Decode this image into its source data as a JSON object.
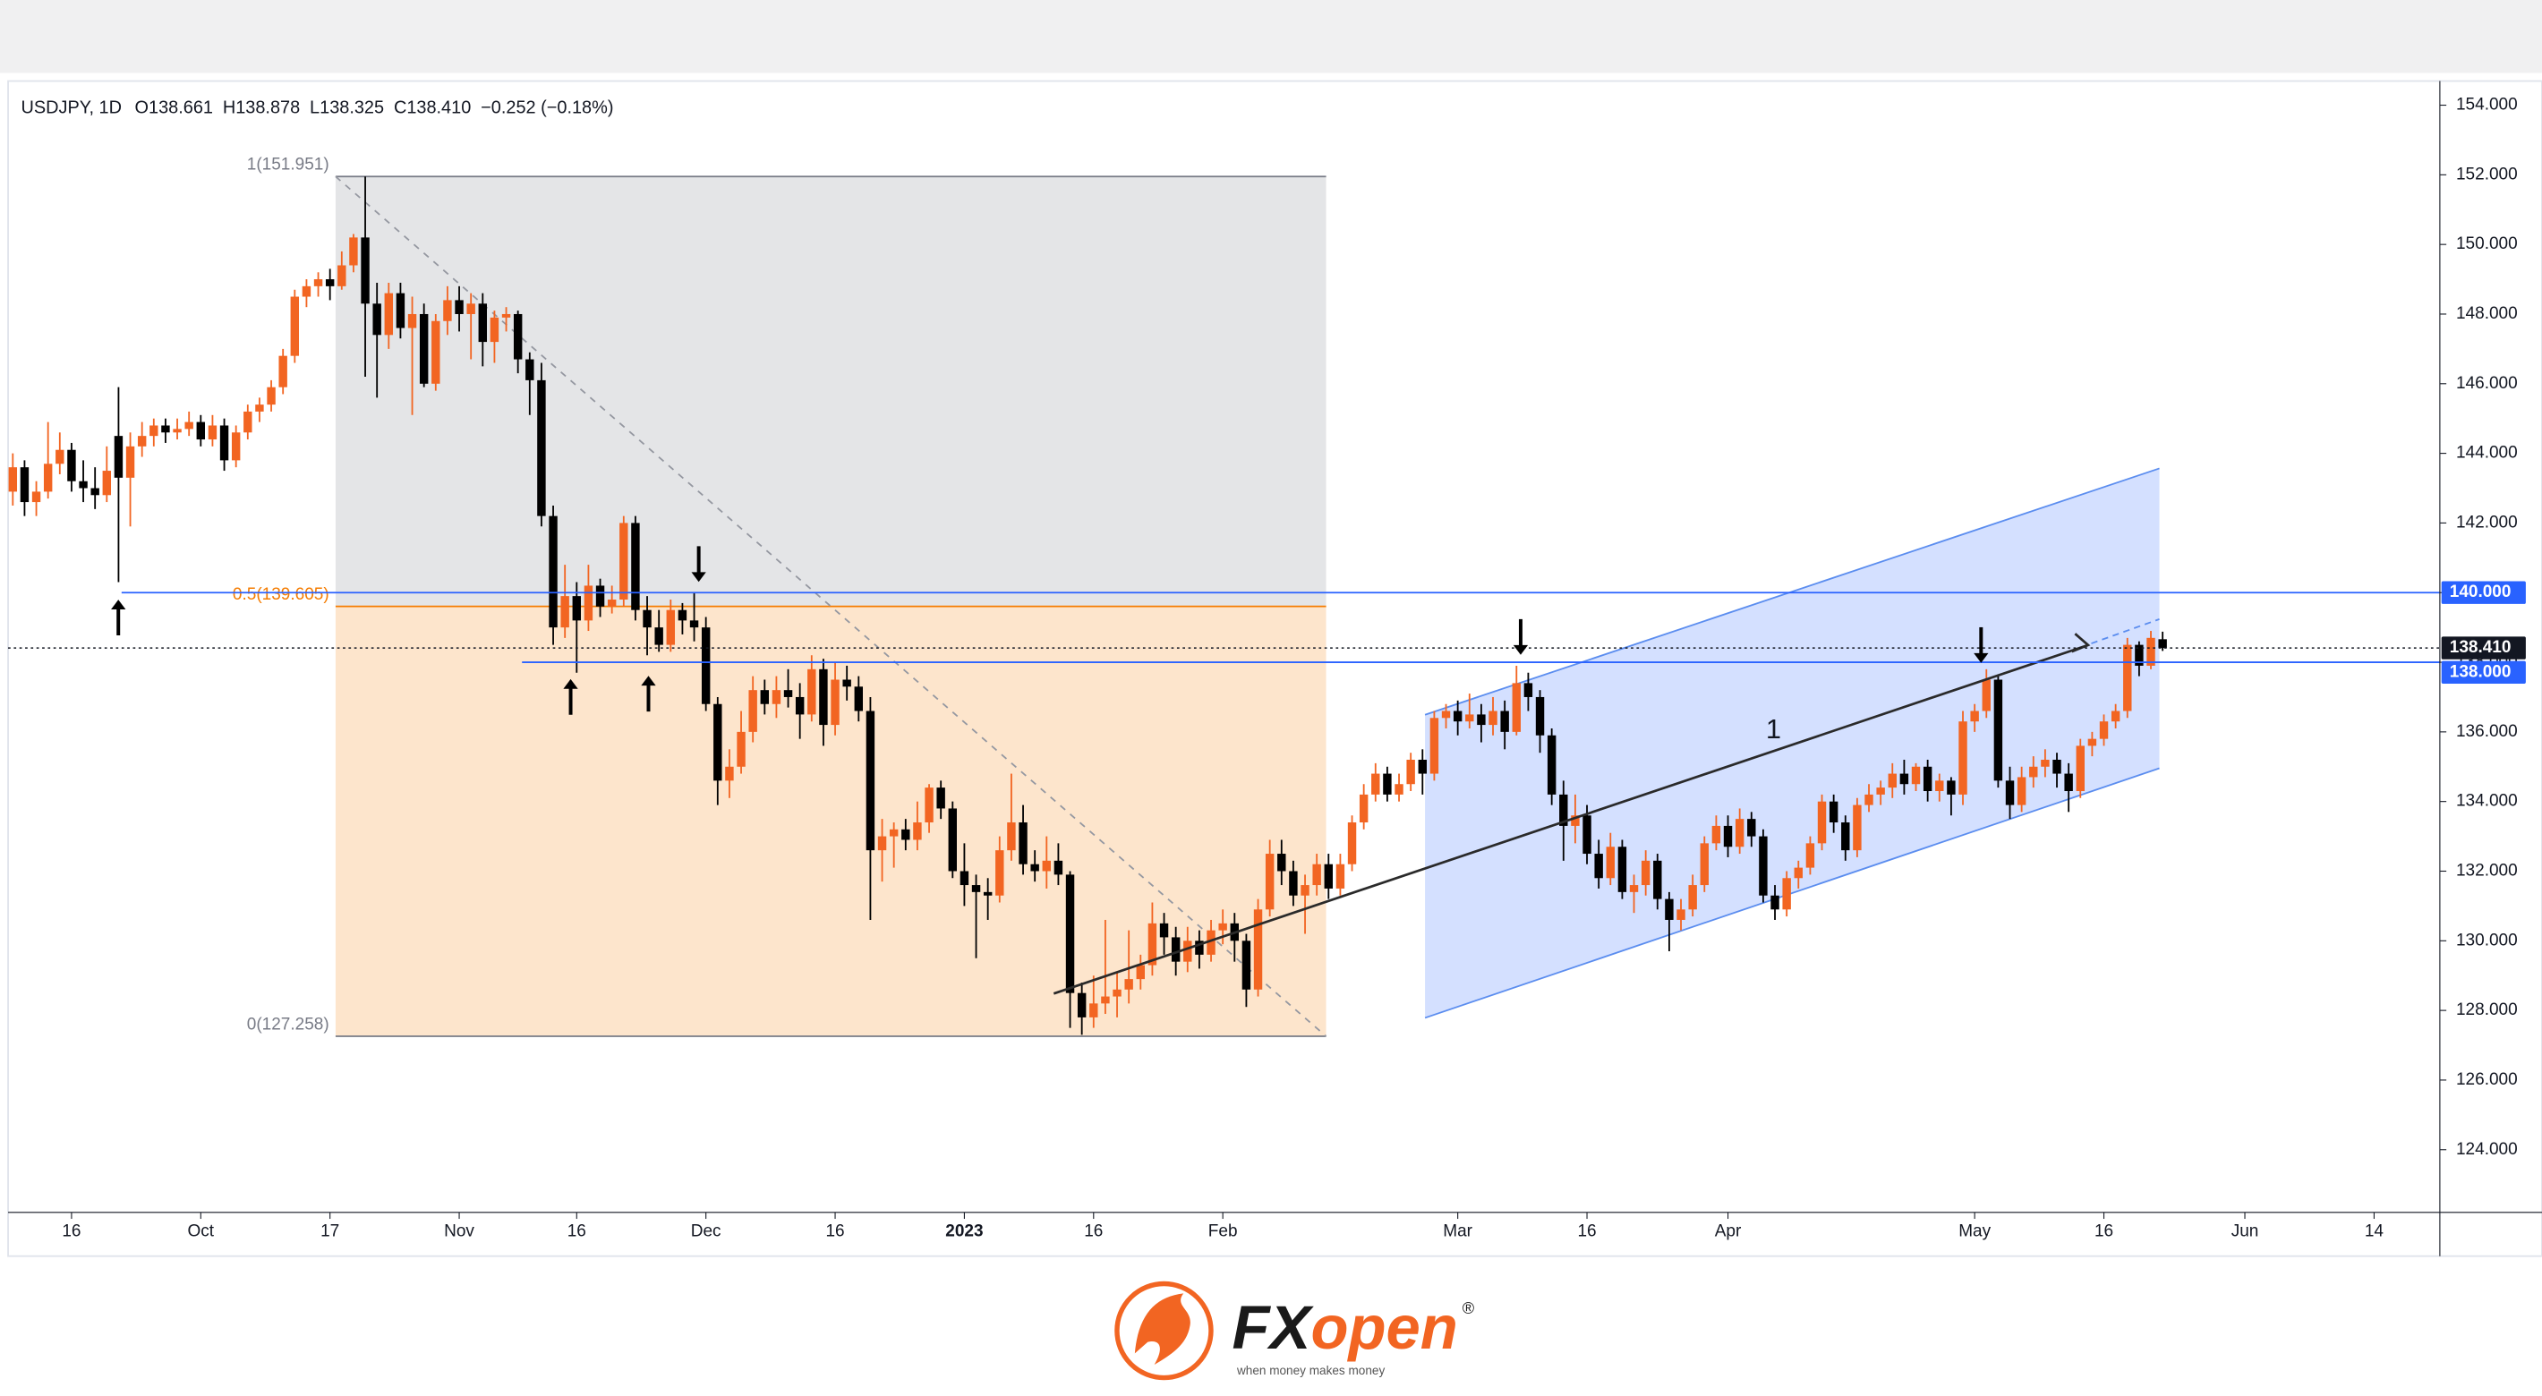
{
  "chart_data": {
    "type": "candlestick",
    "legend": {
      "symbol": "USDJPY, 1D",
      "open": "O138.661",
      "high": "H138.878",
      "low": "L138.325",
      "close": "C138.410",
      "change": "−0.252 (−0.18%)"
    },
    "up_color": "#f26522",
    "down_color": "#000000",
    "ylim": [
      122.2,
      154.6
    ],
    "yticks": [
      {
        "value": 124,
        "label": "124.000"
      },
      {
        "value": 126,
        "label": "126.000"
      },
      {
        "value": 128,
        "label": "128.000"
      },
      {
        "value": 130,
        "label": "130.000"
      },
      {
        "value": 132,
        "label": "132.000"
      },
      {
        "value": 134,
        "label": "134.000"
      },
      {
        "value": 136,
        "label": "136.000"
      },
      {
        "value": 138,
        "label": "138.000"
      },
      {
        "value": 140,
        "label": "140.000"
      },
      {
        "value": 142,
        "label": "142.000"
      },
      {
        "value": 144,
        "label": "144.000"
      },
      {
        "value": 146,
        "label": "146.000"
      },
      {
        "value": 148,
        "label": "148.000"
      },
      {
        "value": 150,
        "label": "150.000"
      },
      {
        "value": 152,
        "label": "152.000"
      },
      {
        "value": 154,
        "label": "154.000"
      }
    ],
    "categories": [
      null,
      null,
      null,
      null,
      null,
      "16",
      null,
      null,
      null,
      null,
      null,
      null,
      null,
      null,
      null,
      null,
      "Oct",
      null,
      null,
      null,
      null,
      null,
      null,
      null,
      null,
      null,
      null,
      "17",
      null,
      null,
      null,
      null,
      null,
      null,
      null,
      null,
      null,
      null,
      "Nov",
      null,
      null,
      null,
      null,
      null,
      null,
      null,
      null,
      null,
      "16",
      null,
      null,
      null,
      null,
      null,
      null,
      null,
      null,
      null,
      null,
      "Dec",
      null,
      null,
      null,
      null,
      null,
      null,
      null,
      null,
      null,
      null,
      "16",
      null,
      null,
      null,
      null,
      null,
      null,
      null,
      null,
      null,
      null,
      "2023",
      null,
      null,
      null,
      null,
      null,
      null,
      null,
      null,
      null,
      null,
      "16",
      null,
      null,
      null,
      null,
      null,
      null,
      null,
      null,
      null,
      null,
      "Feb",
      null,
      null,
      null,
      null,
      null,
      null,
      null,
      null,
      null,
      null,
      null,
      null,
      null,
      null,
      null,
      null,
      null,
      null,
      null,
      "Mar",
      null,
      null,
      null,
      null,
      null,
      null,
      null,
      null,
      null,
      null,
      "16",
      null,
      null,
      null,
      null,
      null,
      null,
      null,
      null,
      null,
      null,
      null,
      "Apr",
      null,
      null,
      null,
      null,
      null,
      null,
      null,
      null,
      null,
      null,
      null,
      null,
      null,
      null,
      null,
      null,
      null,
      null,
      null,
      null,
      "May",
      null,
      null,
      null,
      null,
      null,
      null,
      null,
      null,
      null,
      null,
      "16",
      null,
      null,
      null,
      null,
      null,
      null,
      null,
      null,
      null,
      null,
      null,
      "Jun",
      null,
      null,
      null,
      null,
      null,
      null,
      null,
      null,
      null,
      null,
      "14",
      null,
      null,
      null,
      null,
      null
    ],
    "ohlc": [
      [
        142.9,
        144.0,
        142.5,
        143.6
      ],
      [
        143.6,
        143.8,
        142.2,
        142.6
      ],
      [
        142.6,
        143.2,
        142.2,
        142.9
      ],
      [
        142.9,
        144.9,
        142.7,
        143.7
      ],
      [
        143.7,
        144.6,
        143.4,
        144.1
      ],
      [
        144.1,
        144.3,
        142.9,
        143.2
      ],
      [
        143.2,
        143.8,
        142.6,
        143.0
      ],
      [
        143.0,
        143.6,
        142.4,
        142.8
      ],
      [
        142.8,
        144.2,
        142.6,
        143.5
      ],
      [
        144.5,
        145.9,
        140.3,
        143.3
      ],
      [
        143.3,
        144.6,
        141.9,
        144.2
      ],
      [
        144.2,
        144.9,
        143.9,
        144.5
      ],
      [
        144.5,
        145.0,
        144.2,
        144.8
      ],
      [
        144.8,
        145.0,
        144.3,
        144.6
      ],
      [
        144.6,
        145.0,
        144.4,
        144.7
      ],
      [
        144.7,
        145.2,
        144.5,
        144.9
      ],
      [
        144.9,
        145.1,
        144.2,
        144.4
      ],
      [
        144.4,
        145.1,
        144.2,
        144.8
      ],
      [
        144.8,
        145.0,
        143.5,
        143.8
      ],
      [
        143.8,
        144.8,
        143.6,
        144.6
      ],
      [
        144.6,
        145.4,
        144.4,
        145.2
      ],
      [
        145.2,
        145.6,
        144.9,
        145.4
      ],
      [
        145.4,
        146.1,
        145.2,
        145.9
      ],
      [
        145.9,
        147.0,
        145.7,
        146.8
      ],
      [
        146.8,
        148.7,
        146.6,
        148.5
      ],
      [
        148.5,
        149.0,
        148.2,
        148.8
      ],
      [
        148.8,
        149.2,
        148.5,
        149.0
      ],
      [
        149.0,
        149.3,
        148.4,
        148.8
      ],
      [
        148.8,
        149.8,
        148.7,
        149.4
      ],
      [
        149.4,
        150.3,
        149.2,
        150.2
      ],
      [
        150.2,
        151.951,
        146.2,
        148.3
      ],
      [
        148.3,
        148.9,
        145.6,
        147.4
      ],
      [
        147.4,
        148.9,
        147.0,
        148.6
      ],
      [
        148.6,
        148.9,
        147.3,
        147.6
      ],
      [
        147.6,
        148.5,
        145.1,
        148.0
      ],
      [
        148.0,
        148.3,
        145.9,
        146.0
      ],
      [
        146.0,
        148.0,
        145.8,
        147.8
      ],
      [
        147.8,
        148.8,
        147.4,
        148.4
      ],
      [
        148.4,
        148.8,
        147.5,
        148.0
      ],
      [
        148.0,
        148.6,
        146.7,
        148.3
      ],
      [
        148.3,
        148.6,
        146.5,
        147.2
      ],
      [
        147.2,
        148.1,
        146.6,
        147.9
      ],
      [
        147.9,
        148.2,
        147.5,
        148.0
      ],
      [
        148.0,
        148.1,
        146.3,
        146.7
      ],
      [
        146.7,
        146.9,
        145.1,
        146.1
      ],
      [
        146.1,
        146.6,
        141.9,
        142.2
      ],
      [
        142.2,
        142.5,
        138.5,
        139.0
      ],
      [
        139.0,
        140.8,
        138.7,
        139.9
      ],
      [
        139.9,
        140.3,
        137.7,
        139.2
      ],
      [
        139.2,
        140.8,
        138.9,
        140.2
      ],
      [
        140.2,
        140.4,
        139.3,
        139.6
      ],
      [
        139.6,
        140.2,
        139.4,
        139.8
      ],
      [
        139.8,
        142.2,
        139.6,
        142.0
      ],
      [
        142.0,
        142.2,
        139.2,
        139.5
      ],
      [
        139.5,
        139.9,
        138.2,
        139.0
      ],
      [
        139.0,
        139.5,
        138.3,
        138.5
      ],
      [
        138.5,
        139.8,
        138.3,
        139.5
      ],
      [
        139.5,
        139.7,
        138.8,
        139.2
      ],
      [
        139.2,
        140.0,
        138.6,
        139.0
      ],
      [
        139.0,
        139.3,
        136.6,
        136.8
      ],
      [
        136.8,
        137.0,
        133.9,
        134.6
      ],
      [
        134.6,
        135.5,
        134.1,
        135.0
      ],
      [
        135.0,
        136.6,
        134.8,
        136.0
      ],
      [
        136.0,
        137.6,
        135.7,
        137.2
      ],
      [
        137.2,
        137.5,
        136.5,
        136.8
      ],
      [
        136.8,
        137.6,
        136.4,
        137.2
      ],
      [
        137.2,
        137.8,
        136.7,
        137.0
      ],
      [
        137.0,
        137.4,
        135.8,
        136.5
      ],
      [
        136.5,
        138.2,
        136.3,
        137.8
      ],
      [
        137.8,
        138.1,
        135.6,
        136.2
      ],
      [
        136.2,
        138.0,
        135.9,
        137.5
      ],
      [
        137.5,
        137.9,
        136.9,
        137.3
      ],
      [
        137.3,
        137.6,
        136.3,
        136.6
      ],
      [
        136.6,
        137.0,
        130.6,
        132.6
      ],
      [
        132.6,
        133.5,
        131.7,
        133.0
      ],
      [
        133.0,
        133.4,
        132.1,
        133.2
      ],
      [
        133.2,
        133.5,
        132.6,
        132.9
      ],
      [
        132.9,
        134.0,
        132.6,
        133.4
      ],
      [
        133.4,
        134.5,
        133.1,
        134.4
      ],
      [
        134.4,
        134.6,
        133.5,
        133.8
      ],
      [
        133.8,
        134.0,
        131.8,
        132.0
      ],
      [
        132.0,
        132.8,
        131.0,
        131.6
      ],
      [
        131.6,
        131.9,
        129.5,
        131.4
      ],
      [
        131.4,
        131.8,
        130.6,
        131.3
      ],
      [
        131.3,
        133.0,
        131.1,
        132.6
      ],
      [
        132.6,
        134.8,
        132.3,
        133.4
      ],
      [
        133.4,
        133.9,
        131.9,
        132.2
      ],
      [
        132.2,
        132.6,
        131.7,
        132.0
      ],
      [
        132.0,
        133.0,
        131.5,
        132.3
      ],
      [
        132.3,
        132.8,
        131.6,
        131.9
      ],
      [
        131.9,
        132.0,
        127.5,
        128.5
      ],
      [
        128.5,
        128.8,
        127.3,
        127.8
      ],
      [
        127.8,
        129.0,
        127.5,
        128.2
      ],
      [
        128.2,
        130.6,
        127.9,
        128.4
      ],
      [
        128.4,
        129.1,
        127.8,
        128.6
      ],
      [
        128.6,
        130.3,
        128.2,
        128.9
      ],
      [
        128.9,
        129.6,
        128.6,
        129.3
      ],
      [
        129.3,
        131.1,
        129.0,
        130.5
      ],
      [
        130.5,
        130.8,
        129.6,
        130.1
      ],
      [
        130.1,
        130.4,
        129.0,
        129.4
      ],
      [
        129.4,
        130.4,
        129.1,
        130.0
      ],
      [
        130.0,
        130.3,
        129.2,
        129.6
      ],
      [
        129.6,
        130.6,
        129.4,
        130.3
      ],
      [
        130.3,
        130.9,
        129.9,
        130.5
      ],
      [
        130.5,
        130.8,
        129.4,
        130.0
      ],
      [
        130.0,
        130.2,
        128.1,
        128.6
      ],
      [
        128.6,
        131.2,
        128.4,
        130.9
      ],
      [
        130.9,
        132.9,
        130.7,
        132.5
      ],
      [
        132.5,
        132.9,
        131.6,
        132.0
      ],
      [
        132.0,
        132.3,
        131.0,
        131.3
      ],
      [
        131.3,
        131.9,
        130.2,
        131.6
      ],
      [
        131.6,
        132.5,
        131.3,
        132.2
      ],
      [
        132.2,
        132.5,
        131.2,
        131.5
      ],
      [
        131.5,
        132.5,
        131.3,
        132.2
      ],
      [
        132.2,
        133.6,
        132.0,
        133.4
      ],
      [
        133.4,
        134.5,
        133.2,
        134.2
      ],
      [
        134.2,
        135.1,
        134.0,
        134.8
      ],
      [
        134.8,
        135.0,
        134.0,
        134.2
      ],
      [
        134.2,
        134.8,
        134.0,
        134.5
      ],
      [
        134.5,
        135.4,
        134.3,
        135.2
      ],
      [
        135.2,
        135.5,
        134.2,
        134.8
      ],
      [
        134.8,
        136.6,
        134.6,
        136.4
      ],
      [
        136.4,
        136.8,
        136.1,
        136.6
      ],
      [
        136.6,
        136.9,
        135.9,
        136.3
      ],
      [
        136.3,
        137.1,
        136.1,
        136.5
      ],
      [
        136.5,
        136.8,
        135.7,
        136.2
      ],
      [
        136.2,
        137.0,
        135.9,
        136.6
      ],
      [
        136.6,
        136.9,
        135.5,
        136.0
      ],
      [
        136.0,
        137.9,
        135.9,
        137.4
      ],
      [
        137.4,
        137.7,
        136.6,
        137.0
      ],
      [
        137.0,
        137.2,
        135.4,
        135.9
      ],
      [
        135.9,
        136.1,
        133.9,
        134.2
      ],
      [
        134.2,
        134.6,
        132.3,
        133.3
      ],
      [
        133.3,
        134.2,
        132.8,
        133.6
      ],
      [
        133.6,
        133.9,
        132.2,
        132.5
      ],
      [
        132.5,
        132.9,
        131.5,
        131.8
      ],
      [
        131.8,
        133.1,
        131.6,
        132.7
      ],
      [
        132.7,
        132.9,
        131.2,
        131.4
      ],
      [
        131.4,
        131.9,
        130.8,
        131.6
      ],
      [
        131.6,
        132.6,
        131.3,
        132.3
      ],
      [
        132.3,
        132.5,
        130.9,
        131.2
      ],
      [
        131.2,
        131.4,
        129.7,
        130.6
      ],
      [
        130.6,
        131.2,
        130.3,
        130.9
      ],
      [
        130.9,
        131.9,
        130.7,
        131.6
      ],
      [
        131.6,
        133.0,
        131.4,
        132.8
      ],
      [
        132.8,
        133.6,
        132.6,
        133.3
      ],
      [
        133.3,
        133.6,
        132.4,
        132.7
      ],
      [
        132.7,
        133.8,
        132.5,
        133.5
      ],
      [
        133.5,
        133.7,
        132.7,
        133.0
      ],
      [
        133.0,
        133.2,
        131.1,
        131.3
      ],
      [
        131.3,
        131.6,
        130.6,
        130.9
      ],
      [
        130.9,
        132.0,
        130.7,
        131.8
      ],
      [
        131.8,
        132.3,
        131.5,
        132.1
      ],
      [
        132.1,
        133.0,
        131.9,
        132.8
      ],
      [
        132.8,
        134.2,
        132.6,
        134.0
      ],
      [
        134.0,
        134.2,
        133.1,
        133.4
      ],
      [
        133.4,
        133.6,
        132.3,
        132.6
      ],
      [
        132.6,
        134.1,
        132.4,
        133.9
      ],
      [
        133.9,
        134.5,
        133.7,
        134.2
      ],
      [
        134.2,
        134.6,
        133.9,
        134.4
      ],
      [
        134.4,
        135.1,
        134.1,
        134.8
      ],
      [
        134.8,
        135.2,
        134.2,
        134.5
      ],
      [
        134.5,
        135.1,
        134.3,
        135.0
      ],
      [
        135.0,
        135.2,
        134.0,
        134.3
      ],
      [
        134.3,
        134.8,
        134.0,
        134.6
      ],
      [
        134.6,
        134.7,
        133.6,
        134.2
      ],
      [
        134.2,
        136.6,
        133.9,
        136.3
      ],
      [
        136.3,
        136.8,
        136.0,
        136.6
      ],
      [
        136.6,
        137.8,
        136.4,
        137.5
      ],
      [
        137.5,
        137.6,
        134.4,
        134.6
      ],
      [
        134.6,
        135.0,
        133.5,
        133.9
      ],
      [
        133.9,
        135.0,
        133.7,
        134.7
      ],
      [
        134.7,
        135.3,
        134.4,
        135.0
      ],
      [
        135.0,
        135.5,
        134.7,
        135.2
      ],
      [
        135.2,
        135.4,
        134.4,
        134.8
      ],
      [
        134.8,
        135.1,
        133.7,
        134.3
      ],
      [
        134.3,
        135.8,
        134.1,
        135.6
      ],
      [
        135.6,
        136.0,
        135.3,
        135.8
      ],
      [
        135.8,
        136.5,
        135.6,
        136.3
      ],
      [
        136.3,
        136.8,
        136.1,
        136.6
      ],
      [
        136.6,
        138.7,
        136.4,
        138.5
      ],
      [
        138.5,
        138.6,
        137.6,
        137.9
      ],
      [
        137.9,
        138.9,
        137.8,
        138.7
      ],
      [
        138.661,
        138.878,
        138.325,
        138.41
      ],
      null,
      null,
      null,
      null,
      null,
      null,
      null,
      null,
      null,
      null,
      null,
      null,
      null,
      null,
      null,
      null,
      null,
      null,
      null,
      null,
      null,
      null,
      null
    ],
    "fib_levels": [
      {
        "value": 151.951,
        "label": "1(151.951)"
      },
      {
        "value": 139.605,
        "label": "0.5(139.605)"
      },
      {
        "value": 127.258,
        "label": "0(127.258)"
      }
    ],
    "levels": [
      {
        "value": 140,
        "label": "140.000"
      },
      {
        "value": 138,
        "label": "138.000"
      }
    ],
    "last_price": {
      "value": 138.41,
      "label": "138.410"
    },
    "trend_label": "1"
  },
  "footer": {
    "brand_fx": "FX",
    "brand_open": "open",
    "reg": "®",
    "tagline": "when money makes money"
  }
}
